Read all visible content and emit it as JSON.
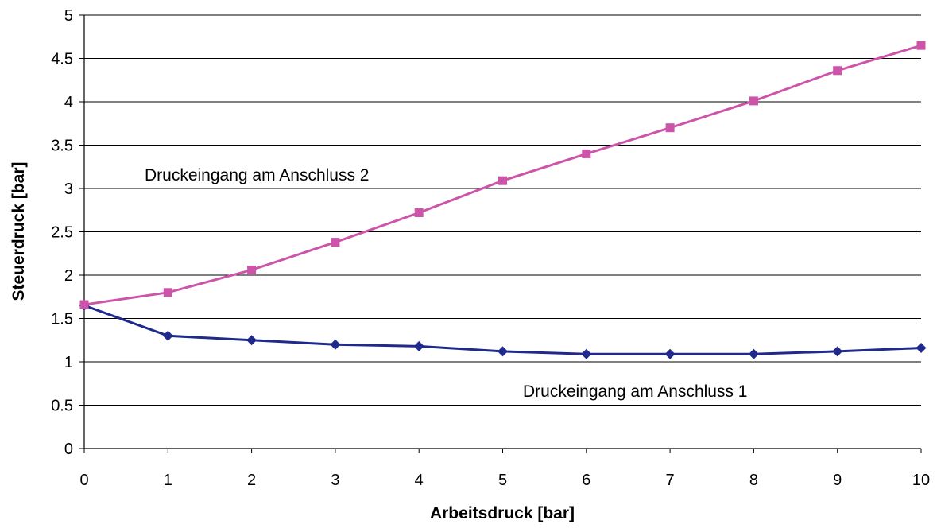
{
  "chart_data": {
    "type": "line",
    "xlabel": "Arbeitsdruck [bar]",
    "ylabel": "Steuerdruck [bar]",
    "xlim": [
      0,
      10
    ],
    "ylim": [
      0,
      5
    ],
    "x_ticks": [
      "0",
      "1",
      "2",
      "3",
      "4",
      "5",
      "6",
      "7",
      "8",
      "9",
      "10"
    ],
    "y_ticks": [
      "0",
      "0.5",
      "1",
      "1.5",
      "2",
      "2.5",
      "3",
      "3.5",
      "4",
      "4.5",
      "5"
    ],
    "grid": "horizontal",
    "x": [
      0,
      1,
      2,
      3,
      4,
      5,
      6,
      7,
      8,
      9,
      10
    ],
    "series": [
      {
        "name": "Druckeingang am Anschluss 1",
        "color": "#1f2a8c",
        "marker": "diamond",
        "values": [
          1.65,
          1.3,
          1.25,
          1.2,
          1.18,
          1.12,
          1.09,
          1.09,
          1.09,
          1.12,
          1.16
        ]
      },
      {
        "name": "Druckeingang am Anschluss 2",
        "color": "#cc55aa",
        "marker": "square",
        "values": [
          1.66,
          1.8,
          2.06,
          2.38,
          2.72,
          3.09,
          3.4,
          3.7,
          4.01,
          4.36,
          4.65
        ]
      }
    ]
  }
}
